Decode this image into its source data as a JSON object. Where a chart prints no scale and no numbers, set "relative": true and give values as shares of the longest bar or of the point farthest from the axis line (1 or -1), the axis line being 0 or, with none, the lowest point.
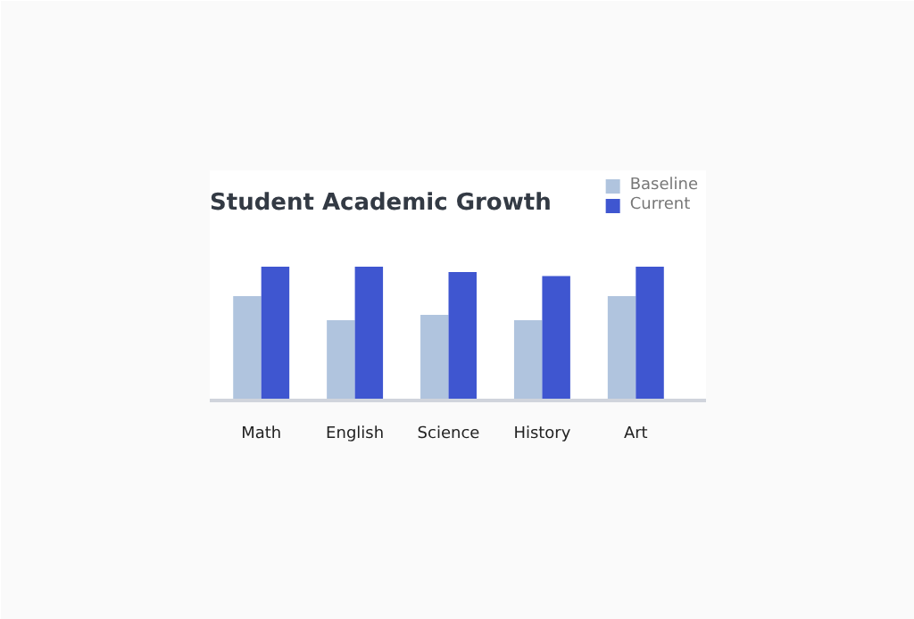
{
  "chart_data": {
    "type": "bar",
    "title": "Student Academic Growth",
    "categories": [
      "Math",
      "English",
      "Science",
      "History",
      "Art"
    ],
    "relative": true,
    "legend": "top right",
    "grid": false,
    "series": [
      {
        "name": "Baseline",
        "color": "#b0c4de",
        "values": [
          0.78,
          0.6,
          0.64,
          0.6,
          0.78
        ]
      },
      {
        "name": "Current",
        "color": "#3f56d0",
        "values": [
          1,
          1,
          0.96,
          0.93,
          1
        ]
      }
    ]
  }
}
